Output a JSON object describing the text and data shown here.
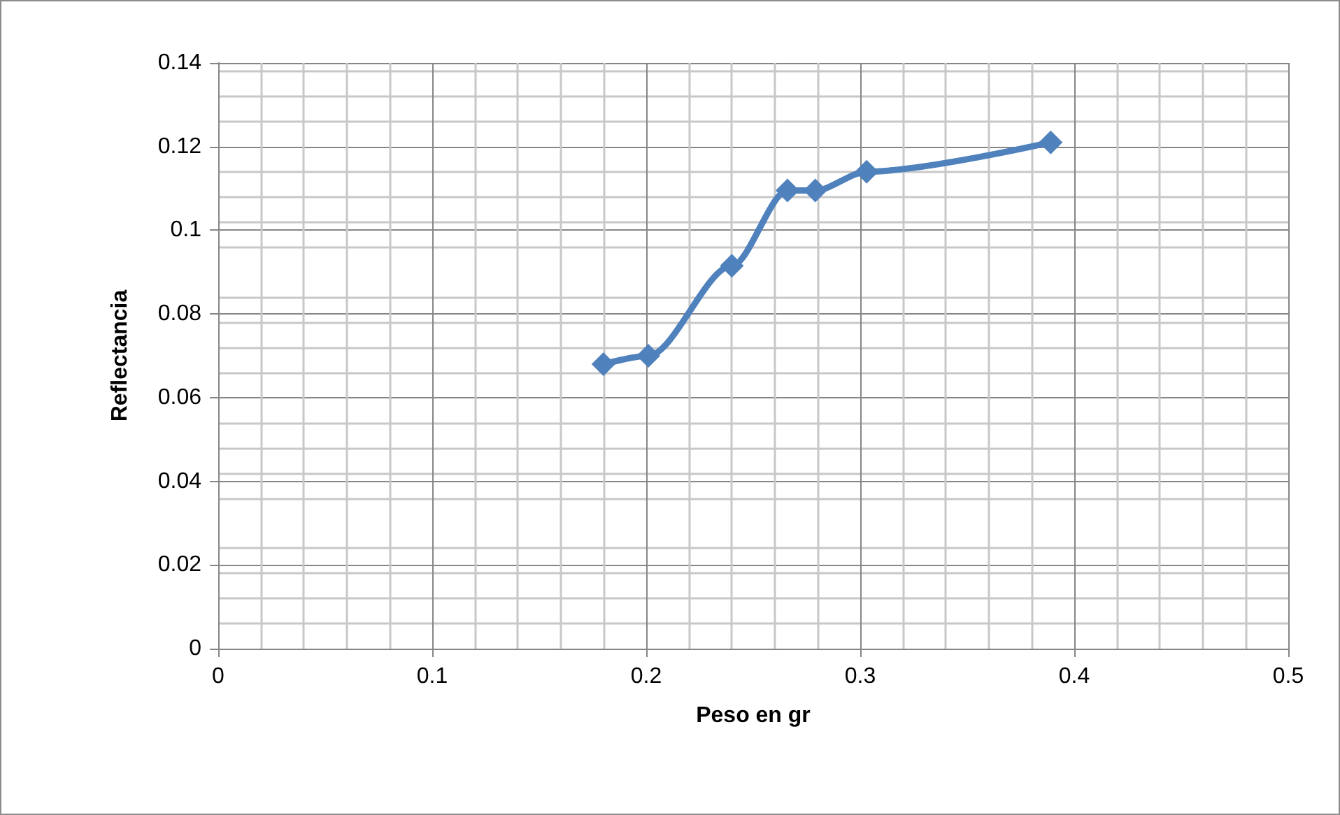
{
  "chart_data": {
    "type": "line",
    "xlabel": "Peso en gr",
    "ylabel": "Reflectancia",
    "x": [
      0.18,
      0.201,
      0.24,
      0.266,
      0.279,
      0.303,
      0.389
    ],
    "series": [
      {
        "color": "#4f81bd",
        "values": [
          0.068,
          0.07,
          0.0915,
          0.1095,
          0.1095,
          0.114,
          0.121
        ]
      }
    ],
    "xlim": [
      0,
      0.5
    ],
    "xticks": [
      0,
      0.1,
      0.2,
      0.3,
      0.4,
      0.5
    ],
    "ylim": [
      0,
      0.14
    ],
    "yticks": [
      0,
      0.02,
      0.04,
      0.06,
      0.08,
      0.1,
      0.12,
      0.14
    ],
    "grid": true,
    "marker": "diamond",
    "line_style": "solid"
  }
}
